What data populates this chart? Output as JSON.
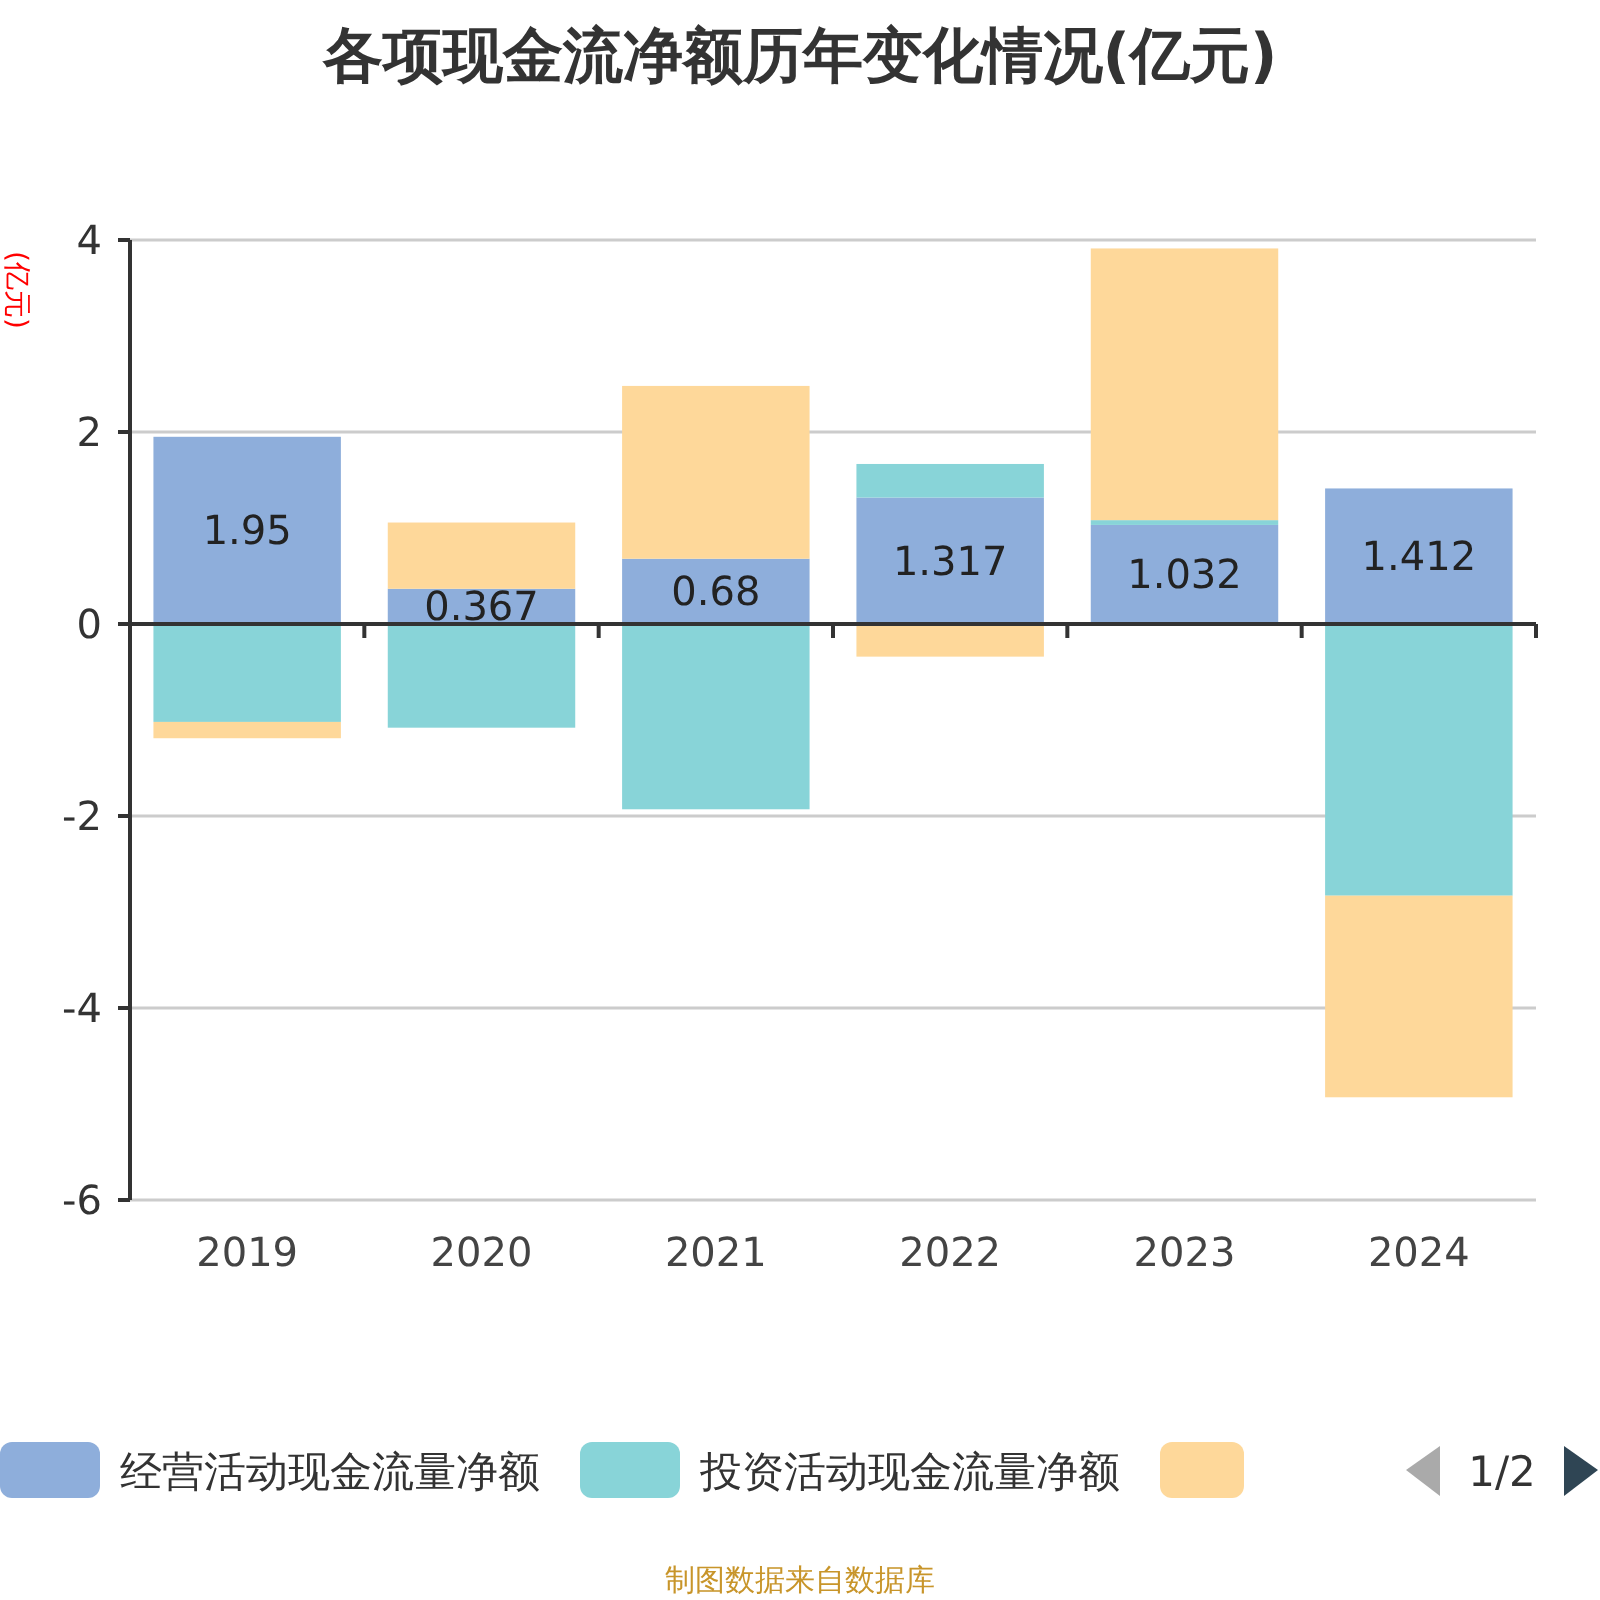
{
  "chart_data": {
    "type": "bar",
    "title": "各项现金流净额历年变化情况(亿元)",
    "ylabel": "(亿元)",
    "categories": [
      "2019",
      "2020",
      "2021",
      "2022",
      "2023",
      "2024"
    ],
    "stacked": true,
    "series": [
      {
        "name": "经营活动现金流量净额",
        "color": "#8eaedb",
        "values": [
          1.95,
          0.367,
          0.68,
          1.317,
          1.032,
          1.412
        ],
        "value_labels": [
          "1.95",
          "0.367",
          "0.68",
          "1.317",
          "1.032",
          "1.412"
        ]
      },
      {
        "name": "投资活动现金流量净额",
        "color": "#88d4d8",
        "values": [
          -1.02,
          -1.08,
          -1.93,
          0.35,
          0.05,
          -2.83
        ]
      },
      {
        "color": "#fed89a",
        "values": [
          -0.17,
          0.69,
          1.8,
          -0.34,
          2.83,
          -2.1
        ]
      }
    ],
    "ylim": [
      -6,
      4
    ],
    "yticks": [
      -6,
      -4,
      -2,
      0,
      2,
      4
    ],
    "grid": "y",
    "legend": "bottom",
    "annotations": [
      "1/2",
      "制图数据来自数据库"
    ]
  }
}
